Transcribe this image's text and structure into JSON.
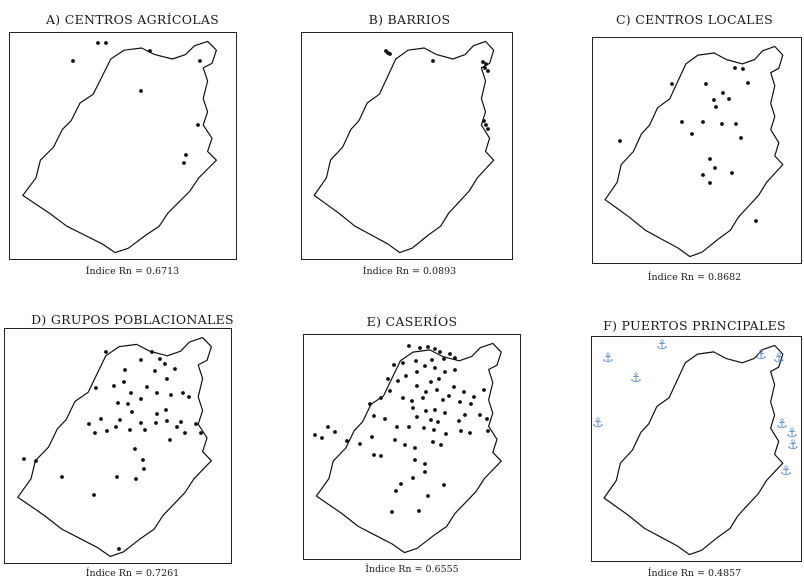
{
  "panels": [
    {
      "id": "A",
      "title": "A)  CENTROS AGRÍCOLAS",
      "index": "Índice Rn = 0.6713",
      "symbol": "dot",
      "points": [
        [
          88,
          10
        ],
        [
          96,
          10
        ],
        [
          140,
          18
        ],
        [
          63,
          28
        ],
        [
          190,
          28
        ],
        [
          131,
          58
        ],
        [
          188,
          92
        ],
        [
          176,
          122
        ],
        [
          174,
          130
        ]
      ]
    },
    {
      "id": "B",
      "title": "B)  BARRIOS",
      "index": "Índice Rn = 0.0893",
      "symbol": "dot",
      "points": [
        [
          84,
          18
        ],
        [
          86,
          20
        ],
        [
          88,
          21
        ],
        [
          131,
          28
        ],
        [
          181,
          29
        ],
        [
          184,
          31
        ],
        [
          183,
          35
        ],
        [
          186,
          38
        ],
        [
          182,
          88
        ],
        [
          184,
          92
        ],
        [
          186,
          96
        ]
      ]
    },
    {
      "id": "C",
      "title": "C)  CENTROS LOCALES",
      "index": "Índice Rn = 0.8682",
      "symbol": "dot",
      "points": [
        [
          142,
          30
        ],
        [
          150,
          31
        ],
        [
          155,
          45
        ],
        [
          79,
          46
        ],
        [
          113,
          46
        ],
        [
          130,
          55
        ],
        [
          136,
          61
        ],
        [
          121,
          62
        ],
        [
          123,
          69
        ],
        [
          89,
          84
        ],
        [
          110,
          84
        ],
        [
          129,
          86
        ],
        [
          143,
          86
        ],
        [
          99,
          96
        ],
        [
          148,
          100
        ],
        [
          27,
          103
        ],
        [
          117,
          121
        ],
        [
          122,
          130
        ],
        [
          139,
          135
        ],
        [
          110,
          137
        ],
        [
          117,
          145
        ],
        [
          163,
          183
        ]
      ]
    },
    {
      "id": "D",
      "title": "D)  GRUPOS POBLACIONALES",
      "index": "Índice Rn = 0.7261",
      "symbol": "dot",
      "points": [
        [
          101,
          23
        ],
        [
          147,
          23
        ],
        [
          136,
          31
        ],
        [
          155,
          30
        ],
        [
          160,
          35
        ],
        [
          120,
          41
        ],
        [
          150,
          42
        ],
        [
          170,
          40
        ],
        [
          162,
          50
        ],
        [
          109,
          57
        ],
        [
          119,
          53
        ],
        [
          91,
          59
        ],
        [
          142,
          58
        ],
        [
          126,
          64
        ],
        [
          178,
          64
        ],
        [
          152,
          64
        ],
        [
          166,
          66
        ],
        [
          184,
          68
        ],
        [
          113,
          74
        ],
        [
          123,
          75
        ],
        [
          136,
          70
        ],
        [
          127,
          83
        ],
        [
          152,
          85
        ],
        [
          161,
          81
        ],
        [
          96,
          90
        ],
        [
          84,
          95
        ],
        [
          115,
          91
        ],
        [
          136,
          94
        ],
        [
          151,
          94
        ],
        [
          162,
          92
        ],
        [
          176,
          93
        ],
        [
          191,
          95
        ],
        [
          111,
          98
        ],
        [
          125,
          101
        ],
        [
          140,
          101
        ],
        [
          172,
          98
        ],
        [
          180,
          104
        ],
        [
          196,
          104
        ],
        [
          90,
          104
        ],
        [
          102,
          102
        ],
        [
          165,
          111
        ],
        [
          130,
          120
        ],
        [
          138,
          131
        ],
        [
          139,
          140
        ],
        [
          131,
          150
        ],
        [
          19,
          130
        ],
        [
          31,
          132
        ],
        [
          57,
          148
        ],
        [
          112,
          148
        ],
        [
          89,
          166
        ],
        [
          114,
          220
        ]
      ]
    },
    {
      "id": "E",
      "title": "E)  CASERÍOS",
      "index": "Índice Rn = 0.6555",
      "symbol": "dot",
      "points": [
        [
          105,
          11
        ],
        [
          116,
          13
        ],
        [
          124,
          12
        ],
        [
          131,
          14
        ],
        [
          136,
          17
        ],
        [
          146,
          19
        ],
        [
          151,
          23
        ],
        [
          140,
          24
        ],
        [
          128,
          25
        ],
        [
          112,
          26
        ],
        [
          99,
          28
        ],
        [
          90,
          30
        ],
        [
          121,
          31
        ],
        [
          131,
          33
        ],
        [
          113,
          37
        ],
        [
          102,
          41
        ],
        [
          84,
          44
        ],
        [
          94,
          46
        ],
        [
          141,
          37
        ],
        [
          151,
          35
        ],
        [
          127,
          47
        ],
        [
          135,
          44
        ],
        [
          113,
          51
        ],
        [
          122,
          57
        ],
        [
          133,
          55
        ],
        [
          150,
          52
        ],
        [
          160,
          57
        ],
        [
          170,
          62
        ],
        [
          180,
          55
        ],
        [
          119,
          63
        ],
        [
          139,
          65
        ],
        [
          145,
          61
        ],
        [
          156,
          67
        ],
        [
          167,
          69
        ],
        [
          86,
          56
        ],
        [
          77,
          63
        ],
        [
          66,
          69
        ],
        [
          99,
          63
        ],
        [
          108,
          66
        ],
        [
          109,
          73
        ],
        [
          122,
          76
        ],
        [
          131,
          75
        ],
        [
          141,
          78
        ],
        [
          161,
          80
        ],
        [
          176,
          80
        ],
        [
          183,
          84
        ],
        [
          113,
          82
        ],
        [
          127,
          85
        ],
        [
          134,
          87
        ],
        [
          155,
          86
        ],
        [
          70,
          81
        ],
        [
          81,
          84
        ],
        [
          93,
          92
        ],
        [
          105,
          92
        ],
        [
          120,
          93
        ],
        [
          130,
          95
        ],
        [
          142,
          99
        ],
        [
          157,
          96
        ],
        [
          166,
          98
        ],
        [
          184,
          96
        ],
        [
          24,
          92
        ],
        [
          31,
          97
        ],
        [
          43,
          106
        ],
        [
          11,
          100
        ],
        [
          18,
          103
        ],
        [
          56,
          109
        ],
        [
          68,
          102
        ],
        [
          77,
          121
        ],
        [
          91,
          105
        ],
        [
          101,
          110
        ],
        [
          111,
          113
        ],
        [
          129,
          107
        ],
        [
          137,
          110
        ],
        [
          111,
          125
        ],
        [
          121,
          129
        ],
        [
          121,
          137
        ],
        [
          109,
          143
        ],
        [
          97,
          149
        ],
        [
          140,
          150
        ],
        [
          70,
          120
        ],
        [
          88,
          177
        ],
        [
          92,
          156
        ],
        [
          124,
          161
        ],
        [
          115,
          176
        ]
      ]
    },
    {
      "id": "F",
      "title": "F)  PUERTOS PRINCIPALES",
      "index": "Índice Rn = 0.4857",
      "symbol": "anchor",
      "points": [
        [
          70,
          12
        ],
        [
          16,
          25
        ],
        [
          44,
          45
        ],
        [
          169,
          22
        ],
        [
          187,
          25
        ],
        [
          190,
          91
        ],
        [
          200,
          100
        ],
        [
          201,
          112
        ],
        [
          194,
          138
        ],
        [
          6,
          90
        ]
      ]
    }
  ]
}
